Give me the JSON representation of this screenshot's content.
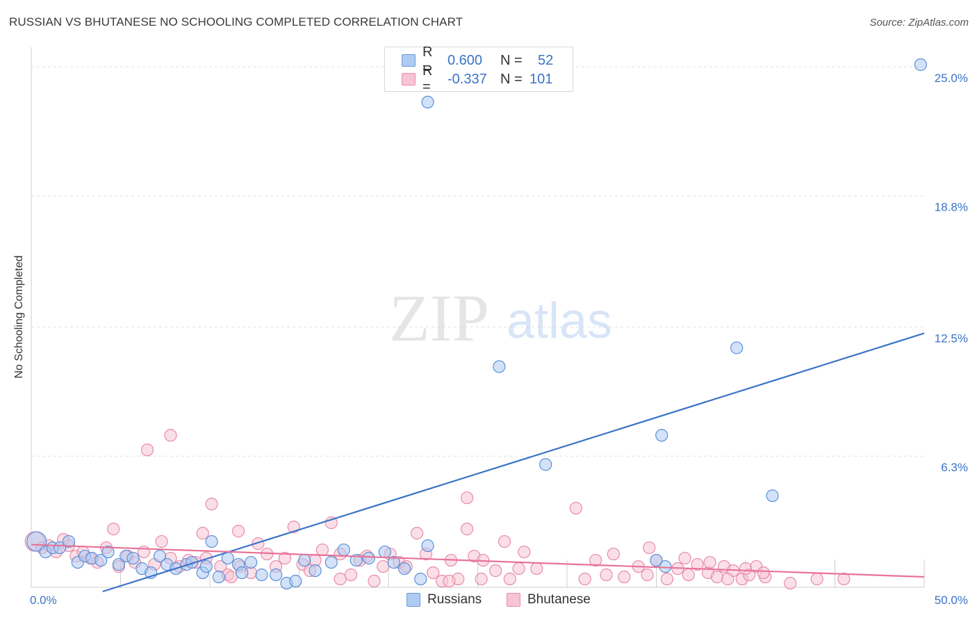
{
  "title": "RUSSIAN VS BHUTANESE NO SCHOOLING COMPLETED CORRELATION CHART",
  "source": "Source: ZipAtlas.com",
  "watermark": {
    "zip": "ZIP",
    "atlas": "atlas"
  },
  "legend_top": [
    {
      "r_label": "R =",
      "r_value": "0.600",
      "n_label": "N =",
      "n_value": "52"
    },
    {
      "r_label": "R =",
      "r_value": "-0.337",
      "n_label": "N =",
      "n_value": "101"
    }
  ],
  "legend_bottom": [
    "Russians",
    "Bhutanese"
  ],
  "chart_data": {
    "type": "scatter",
    "title": "RUSSIAN VS BHUTANESE NO SCHOOLING COMPLETED CORRELATION CHART",
    "xlabel": "",
    "ylabel": "No Schooling Completed",
    "xlim": [
      0,
      50
    ],
    "ylim": [
      0,
      25.6
    ],
    "x_tick_labels": [
      "0.0%",
      "50.0%"
    ],
    "y_ticks": [
      6.3,
      12.5,
      18.8,
      25.0
    ],
    "y_tick_labels": [
      "6.3%",
      "12.5%",
      "18.8%",
      "25.0%"
    ],
    "grid": true,
    "colors": {
      "russians": "#3a73c6",
      "bhutanese": "#e8729a",
      "russians_fill": "#aecbf2",
      "bhutanese_fill": "#f7b8cc"
    },
    "series": [
      {
        "name": "Russians",
        "r": 0.6,
        "n": 52,
        "trend": {
          "x": [
            4.0,
            50.0
          ],
          "y": [
            -0.2,
            12.2
          ]
        },
        "points": [
          [
            0.3,
            2.2
          ],
          [
            0.8,
            1.7
          ],
          [
            1.2,
            1.9
          ],
          [
            1.6,
            1.9
          ],
          [
            2.1,
            2.2
          ],
          [
            2.6,
            1.2
          ],
          [
            3.0,
            1.5
          ],
          [
            3.4,
            1.4
          ],
          [
            3.9,
            1.3
          ],
          [
            4.3,
            1.7
          ],
          [
            4.9,
            1.1
          ],
          [
            5.3,
            1.5
          ],
          [
            5.7,
            1.4
          ],
          [
            6.2,
            0.9
          ],
          [
            6.7,
            0.7
          ],
          [
            7.2,
            1.5
          ],
          [
            7.6,
            1.1
          ],
          [
            8.1,
            0.9
          ],
          [
            8.7,
            1.1
          ],
          [
            9.0,
            1.2
          ],
          [
            9.6,
            0.7
          ],
          [
            9.8,
            1.0
          ],
          [
            10.1,
            2.2
          ],
          [
            10.5,
            0.5
          ],
          [
            11.0,
            1.4
          ],
          [
            11.6,
            1.1
          ],
          [
            11.8,
            0.7
          ],
          [
            12.3,
            1.2
          ],
          [
            12.9,
            0.6
          ],
          [
            13.7,
            0.6
          ],
          [
            14.3,
            0.2
          ],
          [
            14.8,
            0.3
          ],
          [
            15.3,
            1.3
          ],
          [
            15.9,
            0.8
          ],
          [
            16.8,
            1.2
          ],
          [
            17.5,
            1.8
          ],
          [
            18.9,
            1.4
          ],
          [
            18.2,
            1.3
          ],
          [
            19.8,
            1.7
          ],
          [
            20.3,
            1.2
          ],
          [
            20.9,
            0.9
          ],
          [
            21.8,
            0.4
          ],
          [
            22.2,
            2.0
          ],
          [
            22.2,
            23.3
          ],
          [
            26.2,
            10.6
          ],
          [
            28.8,
            5.9
          ],
          [
            35.5,
            1.0
          ],
          [
            35.0,
            1.3
          ],
          [
            35.3,
            7.3
          ],
          [
            39.5,
            11.5
          ],
          [
            41.5,
            4.4
          ],
          [
            49.8,
            25.1
          ]
        ]
      },
      {
        "name": "Bhutanese",
        "r": -0.337,
        "n": 101,
        "trend": {
          "x": [
            0.0,
            50.0
          ],
          "y": [
            2.05,
            0.5
          ]
        },
        "points": [
          [
            0.2,
            2.2
          ],
          [
            0.6,
            1.9
          ],
          [
            1.0,
            2.0
          ],
          [
            1.4,
            1.7
          ],
          [
            1.8,
            2.3
          ],
          [
            2.1,
            2.0
          ],
          [
            2.5,
            1.5
          ],
          [
            2.9,
            1.7
          ],
          [
            3.3,
            1.4
          ],
          [
            3.7,
            1.2
          ],
          [
            4.2,
            1.9
          ],
          [
            4.6,
            2.8
          ],
          [
            4.9,
            1.0
          ],
          [
            5.4,
            1.5
          ],
          [
            5.8,
            1.2
          ],
          [
            6.3,
            1.7
          ],
          [
            6.5,
            6.6
          ],
          [
            6.9,
            1.1
          ],
          [
            7.3,
            2.2
          ],
          [
            7.8,
            1.4
          ],
          [
            7.8,
            7.3
          ],
          [
            8.3,
            1.0
          ],
          [
            8.8,
            1.3
          ],
          [
            9.2,
            1.2
          ],
          [
            9.6,
            2.6
          ],
          [
            9.8,
            1.4
          ],
          [
            10.1,
            4.0
          ],
          [
            10.6,
            1.0
          ],
          [
            11.0,
            0.6
          ],
          [
            11.2,
            0.5
          ],
          [
            11.7,
            1.0
          ],
          [
            11.6,
            2.7
          ],
          [
            12.3,
            0.7
          ],
          [
            12.7,
            2.1
          ],
          [
            13.2,
            1.6
          ],
          [
            13.7,
            1.0
          ],
          [
            14.2,
            1.4
          ],
          [
            14.7,
            2.9
          ],
          [
            15.2,
            1.1
          ],
          [
            15.6,
            0.8
          ],
          [
            15.9,
            1.3
          ],
          [
            16.3,
            1.8
          ],
          [
            16.8,
            3.1
          ],
          [
            17.3,
            1.6
          ],
          [
            17.3,
            0.4
          ],
          [
            17.9,
            0.6
          ],
          [
            18.4,
            1.3
          ],
          [
            18.8,
            1.5
          ],
          [
            19.2,
            0.3
          ],
          [
            19.7,
            1.0
          ],
          [
            20.1,
            1.6
          ],
          [
            20.6,
            1.2
          ],
          [
            21.0,
            1.0
          ],
          [
            21.6,
            2.6
          ],
          [
            22.1,
            1.6
          ],
          [
            22.5,
            0.7
          ],
          [
            23.0,
            0.3
          ],
          [
            23.5,
            1.3
          ],
          [
            23.9,
            0.4
          ],
          [
            24.4,
            2.8
          ],
          [
            24.8,
            1.5
          ],
          [
            25.2,
            0.4
          ],
          [
            24.4,
            4.3
          ],
          [
            25.3,
            1.3
          ],
          [
            26.0,
            0.8
          ],
          [
            26.5,
            2.2
          ],
          [
            26.8,
            0.4
          ],
          [
            27.3,
            0.9
          ],
          [
            27.6,
            1.7
          ],
          [
            28.3,
            0.9
          ],
          [
            30.5,
            3.8
          ],
          [
            31.0,
            0.4
          ],
          [
            31.6,
            1.3
          ],
          [
            32.2,
            0.6
          ],
          [
            32.6,
            1.6
          ],
          [
            33.2,
            0.5
          ],
          [
            34.0,
            1.0
          ],
          [
            34.5,
            0.6
          ],
          [
            35.0,
            1.3
          ],
          [
            35.6,
            0.4
          ],
          [
            36.2,
            0.9
          ],
          [
            36.8,
            0.6
          ],
          [
            37.3,
            1.1
          ],
          [
            37.9,
            0.7
          ],
          [
            38.4,
            0.5
          ],
          [
            38.8,
            1.0
          ],
          [
            39.3,
            0.8
          ],
          [
            39.8,
            0.4
          ],
          [
            40.2,
            0.6
          ],
          [
            40.6,
            1.0
          ],
          [
            41.1,
            0.5
          ],
          [
            34.6,
            1.9
          ],
          [
            36.6,
            1.4
          ],
          [
            38.0,
            1.2
          ],
          [
            39.0,
            0.4
          ],
          [
            40.0,
            0.9
          ],
          [
            41.0,
            0.7
          ],
          [
            42.5,
            0.2
          ],
          [
            44.0,
            0.4
          ],
          [
            45.5,
            0.4
          ],
          [
            23.4,
            0.3
          ]
        ]
      }
    ]
  }
}
